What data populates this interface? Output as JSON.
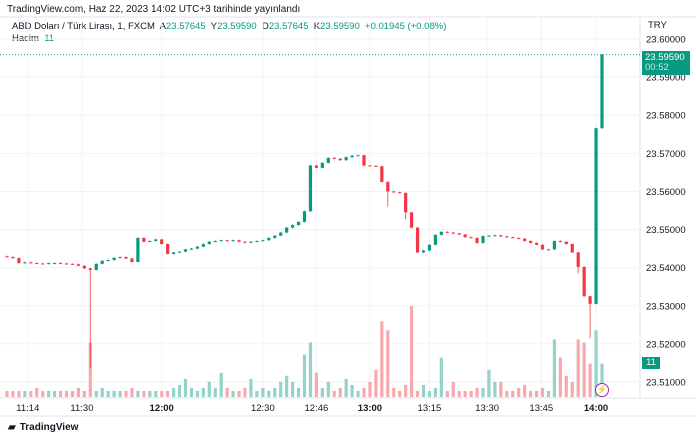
{
  "header": {
    "published": "TradingView.com, Haz 22, 2023 14:02 UTC+3 tarihinde yayınlandı"
  },
  "legend": {
    "symbol": "ABD Doları / Türk Lirası, 1, FXCM",
    "o_label": "A",
    "o": "23.57645",
    "h_label": "Y",
    "h": "23.59590",
    "l_label": "D",
    "l": "23.57645",
    "c_label": "K",
    "c": "23.59590",
    "change": "+0.01945 (+0.08%)",
    "volume_label": "Hacim",
    "volume": "11"
  },
  "price_scale": {
    "currency": "TRY",
    "ticks": [
      "23.60000",
      "23.59000",
      "23.58000",
      "23.57000",
      "23.56000",
      "23.55000",
      "23.54000",
      "23.53000",
      "23.52000",
      "23.51000"
    ],
    "last_price": "23.59590",
    "countdown": "00:52",
    "last_volume": "11"
  },
  "footer": {
    "brand": "TradingView"
  },
  "colors": {
    "up": "#089981",
    "down": "#f23645",
    "up_vol": "#94d3c8",
    "down_vol": "#f8a9ae",
    "grid": "#f0f3fa"
  },
  "chart_data": {
    "type": "candlestick",
    "x_ticks": [
      {
        "label": "11:14",
        "at": 3.5
      },
      {
        "label": "11:30",
        "at": 12.6
      },
      {
        "label": "12:00",
        "at": 26,
        "bold": true
      },
      {
        "label": "12:30",
        "at": 43
      },
      {
        "label": "12:46",
        "at": 52
      },
      {
        "label": "13:00",
        "at": 61,
        "bold": true
      },
      {
        "label": "13:15",
        "at": 71
      },
      {
        "label": "13:30",
        "at": 80.7
      },
      {
        "label": "13:45",
        "at": 89.8
      },
      {
        "label": "14:00",
        "at": 99,
        "bold": true
      }
    ],
    "ylim": [
      23.51,
      23.6
    ],
    "closes": [
      23.5428,
      23.5425,
      23.5412,
      23.5414,
      23.5412,
      23.5411,
      23.541,
      23.5412,
      23.5412,
      23.5411,
      23.541,
      23.5409,
      23.5405,
      23.5398,
      23.5394,
      23.541,
      23.5418,
      23.542,
      23.5426,
      23.5428,
      23.5424,
      23.5415,
      23.5478,
      23.5468,
      23.547,
      23.5474,
      23.5462,
      23.5436,
      23.544,
      23.5442,
      23.5448,
      23.545,
      23.5455,
      23.5462,
      23.5468,
      23.547,
      23.5472,
      23.547,
      23.5472,
      23.5468,
      23.5466,
      23.5468,
      23.547,
      23.5472,
      23.5478,
      23.5484,
      23.5492,
      23.5505,
      23.5512,
      23.552,
      23.5548,
      23.5668,
      23.5662,
      23.5675,
      23.5688,
      23.5686,
      23.5682,
      23.569,
      23.5694,
      23.5695,
      23.5668,
      23.5667,
      23.5666,
      23.5625,
      23.56,
      23.5598,
      23.5596,
      23.5545,
      23.5505,
      23.544,
      23.5445,
      23.546,
      23.5486,
      23.5494,
      23.5492,
      23.549,
      23.5487,
      23.548,
      23.5478,
      23.5465,
      23.5483,
      23.5484,
      23.5485,
      23.5482,
      23.548,
      23.5478,
      23.5476,
      23.547,
      23.5465,
      23.546,
      23.5448,
      23.5448,
      23.547,
      23.5468,
      23.5462,
      23.544,
      23.5402,
      23.5325,
      23.5305,
      23.5766,
      23.5959
    ],
    "first_open": 23.543,
    "volumes": [
      2,
      2,
      2,
      2,
      2,
      3,
      2,
      2,
      2,
      2,
      2,
      2,
      3,
      2,
      18,
      2,
      3,
      2,
      2,
      2,
      2,
      3,
      2,
      2,
      2,
      2,
      2,
      2,
      3,
      4,
      6,
      3,
      2,
      3,
      5,
      3,
      8,
      3,
      2,
      2,
      3,
      6,
      2,
      3,
      2,
      3,
      5,
      7,
      5,
      3,
      14,
      18,
      8,
      3,
      5,
      2,
      3,
      6,
      4,
      2,
      3,
      5,
      9,
      25,
      22,
      3,
      2,
      4,
      30,
      2,
      4,
      2,
      3,
      13,
      2,
      5,
      2,
      2,
      2,
      3,
      3,
      9,
      5,
      5,
      2,
      2,
      3,
      4,
      2,
      2,
      3,
      2,
      19,
      13,
      7,
      5,
      19,
      18,
      11,
      22,
      11
    ],
    "low_wicks": {
      "14": 23.5137,
      "64": 23.556,
      "67": 23.5527,
      "96": 23.5385,
      "98": 23.5215
    }
  }
}
